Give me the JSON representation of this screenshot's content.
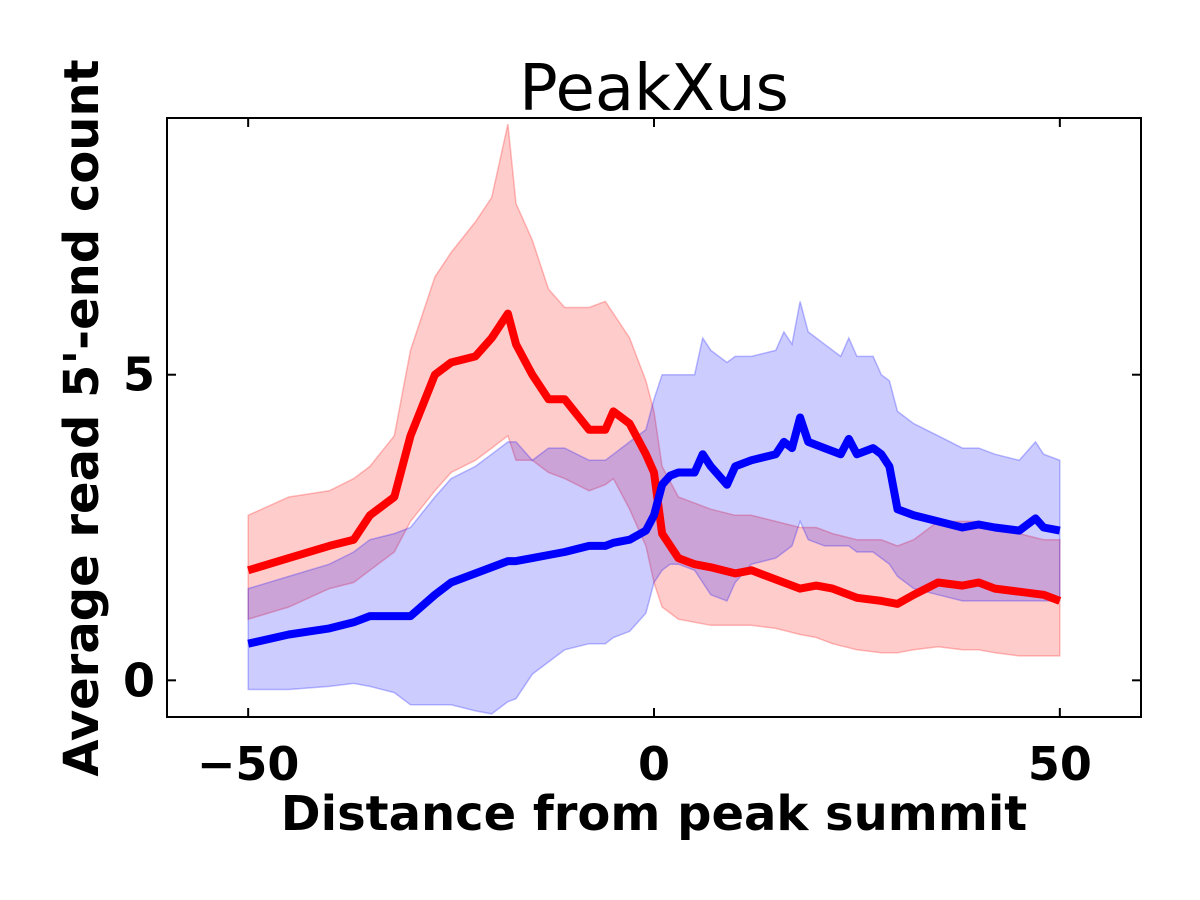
{
  "chart_data": {
    "type": "line",
    "title": "PeakXus",
    "xlabel": "Distance from peak summit",
    "ylabel": "Average read 5'-end count",
    "xlim": [
      -60,
      60
    ],
    "ylim": [
      -0.6,
      9.2
    ],
    "xticks": [
      -50,
      0,
      50
    ],
    "xtick_labels": [
      "−50",
      "0",
      "50"
    ],
    "yticks": [
      0,
      5
    ],
    "ytick_labels": [
      "0",
      "5"
    ],
    "grid": false,
    "legend": "none",
    "series": [
      {
        "color": "#ff0000",
        "band_color": "#ff0000",
        "x": [
          -50,
          -45,
          -40,
          -37,
          -35,
          -32,
          -30,
          -27,
          -25,
          -22,
          -20,
          -18,
          -17,
          -15,
          -13,
          -11,
          -8,
          -6,
          -5,
          -3,
          -1,
          0,
          1,
          3,
          5,
          7,
          10,
          12,
          15,
          18,
          20,
          22,
          25,
          28,
          30,
          32,
          35,
          38,
          40,
          42,
          45,
          48,
          50
        ],
        "y": [
          1.8,
          2.0,
          2.2,
          2.3,
          2.7,
          3.0,
          4.0,
          5.0,
          5.2,
          5.3,
          5.6,
          6.0,
          5.5,
          5.0,
          4.6,
          4.6,
          4.1,
          4.1,
          4.4,
          4.2,
          3.7,
          3.4,
          2.4,
          2.0,
          1.9,
          1.85,
          1.75,
          1.8,
          1.65,
          1.5,
          1.55,
          1.5,
          1.35,
          1.3,
          1.25,
          1.4,
          1.6,
          1.55,
          1.6,
          1.5,
          1.45,
          1.4,
          1.3
        ],
        "lower": [
          1.0,
          1.2,
          1.5,
          1.6,
          1.8,
          2.1,
          2.6,
          3.1,
          3.4,
          3.6,
          3.8,
          4.0,
          3.6,
          3.6,
          3.4,
          3.3,
          3.1,
          3.2,
          3.3,
          2.8,
          2.2,
          1.6,
          1.2,
          1.0,
          0.95,
          0.9,
          0.9,
          0.9,
          0.85,
          0.75,
          0.7,
          0.6,
          0.5,
          0.45,
          0.45,
          0.5,
          0.55,
          0.5,
          0.5,
          0.45,
          0.4,
          0.4,
          0.4
        ],
        "upper": [
          2.7,
          3.0,
          3.1,
          3.3,
          3.5,
          4.0,
          5.4,
          6.6,
          7.0,
          7.5,
          7.9,
          9.1,
          7.8,
          7.2,
          6.4,
          6.1,
          6.1,
          6.2,
          6.0,
          5.6,
          4.9,
          4.4,
          3.5,
          3.0,
          2.9,
          2.8,
          2.7,
          2.7,
          2.6,
          2.5,
          2.5,
          2.4,
          2.3,
          2.3,
          2.2,
          2.3,
          2.6,
          2.6,
          2.6,
          2.5,
          2.4,
          2.3,
          2.3
        ]
      },
      {
        "color": "#0000ff",
        "band_color": "#0000ff",
        "x": [
          -50,
          -45,
          -40,
          -37,
          -35,
          -32,
          -30,
          -27,
          -25,
          -22,
          -20,
          -18,
          -17,
          -15,
          -13,
          -11,
          -8,
          -6,
          -5,
          -3,
          -1,
          0,
          1,
          2,
          3,
          5,
          6,
          7,
          9,
          10,
          12,
          15,
          16,
          17,
          18,
          19,
          21,
          23,
          24,
          25,
          27,
          28,
          29,
          30,
          32,
          35,
          38,
          40,
          42,
          45,
          47,
          48,
          50
        ],
        "y": [
          0.6,
          0.75,
          0.85,
          0.95,
          1.05,
          1.05,
          1.05,
          1.4,
          1.6,
          1.75,
          1.85,
          1.95,
          1.95,
          2.0,
          2.05,
          2.1,
          2.2,
          2.2,
          2.25,
          2.3,
          2.45,
          2.7,
          3.2,
          3.35,
          3.4,
          3.4,
          3.7,
          3.5,
          3.2,
          3.5,
          3.6,
          3.7,
          3.9,
          3.8,
          4.3,
          3.9,
          3.8,
          3.7,
          3.95,
          3.7,
          3.8,
          3.7,
          3.5,
          2.8,
          2.7,
          2.6,
          2.5,
          2.55,
          2.5,
          2.45,
          2.65,
          2.5,
          2.45
        ],
        "lower": [
          -0.15,
          -0.15,
          -0.1,
          -0.05,
          -0.1,
          -0.2,
          -0.4,
          -0.4,
          -0.4,
          -0.5,
          -0.55,
          -0.35,
          -0.3,
          0.1,
          0.3,
          0.5,
          0.6,
          0.6,
          0.7,
          0.8,
          1.1,
          1.6,
          1.8,
          1.9,
          1.9,
          1.8,
          1.6,
          1.4,
          1.3,
          1.6,
          1.9,
          2.0,
          2.1,
          2.2,
          2.6,
          2.3,
          2.2,
          2.2,
          2.2,
          2.1,
          2.1,
          2.0,
          1.9,
          1.7,
          1.5,
          1.4,
          1.3,
          1.3,
          1.3,
          1.3,
          1.3,
          1.3,
          1.3
        ],
        "upper": [
          1.5,
          1.7,
          1.9,
          2.1,
          2.3,
          2.4,
          2.5,
          3.0,
          3.3,
          3.5,
          3.7,
          3.9,
          3.9,
          3.6,
          3.8,
          3.8,
          3.6,
          3.6,
          3.7,
          3.9,
          4.1,
          4.6,
          5.0,
          5.0,
          5.0,
          5.0,
          5.6,
          5.4,
          5.2,
          5.3,
          5.3,
          5.4,
          5.7,
          5.5,
          6.2,
          5.7,
          5.5,
          5.3,
          5.6,
          5.3,
          5.3,
          5.0,
          4.9,
          4.4,
          4.2,
          4.0,
          3.8,
          3.8,
          3.7,
          3.6,
          3.9,
          3.7,
          3.6
        ]
      }
    ]
  }
}
